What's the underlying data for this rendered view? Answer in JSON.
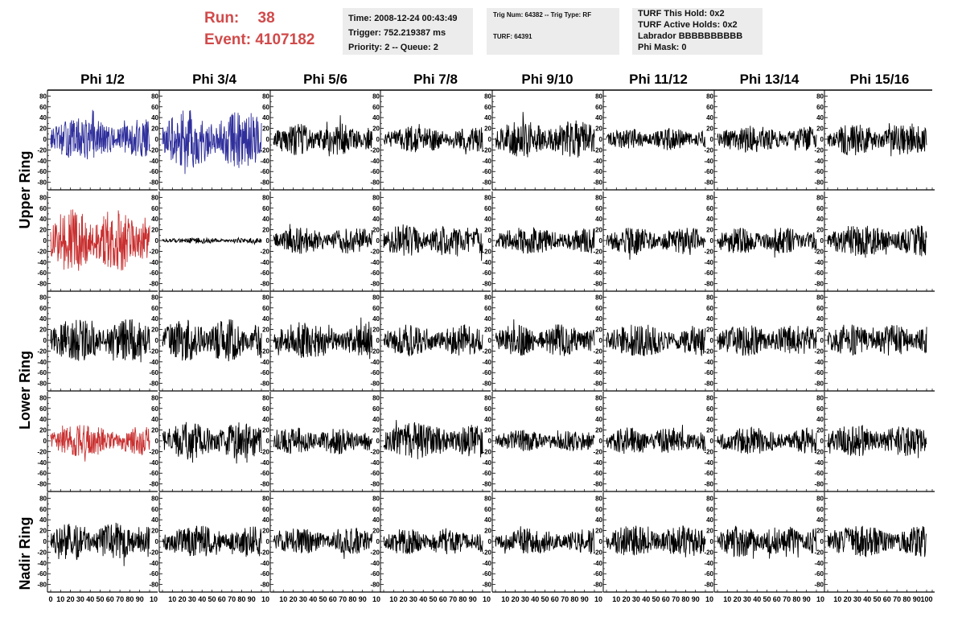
{
  "header": {
    "run_label": "Run:",
    "run_value": "38",
    "event_label": "Event:",
    "event_value": "4107182"
  },
  "time_box": {
    "time": "Time: 2008-12-24 00:43:49",
    "trigger": "Trigger: 752.219387 ms",
    "priority": "Priority: 2 -- Queue: 2"
  },
  "trig_box": {
    "trig_line": "Trig Num: 64382 -- Trig Type: RF",
    "turf_line": "TURF: 64391"
  },
  "turf_box": {
    "this_hold": "TURF This Hold: 0x2",
    "active_holds": "TURF Active Holds: 0x2",
    "labrador": "Labrador BBBBBBBBBB",
    "phi_mask": "Phi Mask: 0"
  },
  "columns": [
    "Phi 1/2",
    "Phi 3/4",
    "Phi 5/6",
    "Phi 7/8",
    "Phi 9/10",
    "Phi 11/12",
    "Phi 13/14",
    "Phi 15/16"
  ],
  "ring_labels": [
    "Upper Ring",
    "Lower Ring",
    "Nadir Ring"
  ],
  "y_ticks": [
    "80",
    "60",
    "40",
    "20",
    "0",
    "-20",
    "-40",
    "-60",
    "-80"
  ],
  "x_tick_labels": [
    "0",
    "10",
    "20",
    "30",
    "40",
    "50",
    "60",
    "70",
    "80",
    "90"
  ],
  "x_last_tick": "100",
  "colors": {
    "highlight_blue": "#2f2f9c",
    "highlight_red": "#c93030",
    "trace_default": "#000000",
    "run_text": "#d14a4a",
    "box_bg": "#ececec"
  },
  "chart_data": {
    "type": "line",
    "xlim": [
      0,
      100
    ],
    "ylim": [
      -85,
      85
    ],
    "grid": false,
    "panels": [
      {
        "row": 0,
        "col": 0,
        "color": "blue",
        "amplitude": 40
      },
      {
        "row": 0,
        "col": 1,
        "color": "blue",
        "amplitude": 55
      },
      {
        "row": 0,
        "col": 2,
        "color": "black",
        "amplitude": 30
      },
      {
        "row": 0,
        "col": 3,
        "color": "black",
        "amplitude": 25
      },
      {
        "row": 0,
        "col": 4,
        "color": "black",
        "amplitude": 35
      },
      {
        "row": 0,
        "col": 5,
        "color": "black",
        "amplitude": 20
      },
      {
        "row": 0,
        "col": 6,
        "color": "black",
        "amplitude": 25
      },
      {
        "row": 0,
        "col": 7,
        "color": "black",
        "amplitude": 30
      },
      {
        "row": 1,
        "col": 0,
        "color": "red",
        "amplitude": 60
      },
      {
        "row": 1,
        "col": 1,
        "color": "black",
        "amplitude": 5
      },
      {
        "row": 1,
        "col": 2,
        "color": "black",
        "amplitude": 25
      },
      {
        "row": 1,
        "col": 3,
        "color": "black",
        "amplitude": 30
      },
      {
        "row": 1,
        "col": 4,
        "color": "black",
        "amplitude": 25
      },
      {
        "row": 1,
        "col": 5,
        "color": "black",
        "amplitude": 25
      },
      {
        "row": 1,
        "col": 6,
        "color": "black",
        "amplitude": 25
      },
      {
        "row": 1,
        "col": 7,
        "color": "black",
        "amplitude": 30
      },
      {
        "row": 2,
        "col": 0,
        "color": "black",
        "amplitude": 40
      },
      {
        "row": 2,
        "col": 1,
        "color": "black",
        "amplitude": 40
      },
      {
        "row": 2,
        "col": 2,
        "color": "black",
        "amplitude": 35
      },
      {
        "row": 2,
        "col": 3,
        "color": "black",
        "amplitude": 30
      },
      {
        "row": 2,
        "col": 4,
        "color": "black",
        "amplitude": 30
      },
      {
        "row": 2,
        "col": 5,
        "color": "black",
        "amplitude": 30
      },
      {
        "row": 2,
        "col": 6,
        "color": "black",
        "amplitude": 30
      },
      {
        "row": 2,
        "col": 7,
        "color": "black",
        "amplitude": 30
      },
      {
        "row": 3,
        "col": 0,
        "color": "red",
        "amplitude": 30
      },
      {
        "row": 3,
        "col": 1,
        "color": "black",
        "amplitude": 35
      },
      {
        "row": 3,
        "col": 2,
        "color": "black",
        "amplitude": 25
      },
      {
        "row": 3,
        "col": 3,
        "color": "black",
        "amplitude": 35
      },
      {
        "row": 3,
        "col": 4,
        "color": "black",
        "amplitude": 20
      },
      {
        "row": 3,
        "col": 5,
        "color": "black",
        "amplitude": 25
      },
      {
        "row": 3,
        "col": 6,
        "color": "black",
        "amplitude": 25
      },
      {
        "row": 3,
        "col": 7,
        "color": "black",
        "amplitude": 30
      },
      {
        "row": 4,
        "col": 0,
        "color": "black",
        "amplitude": 35
      },
      {
        "row": 4,
        "col": 1,
        "color": "black",
        "amplitude": 30
      },
      {
        "row": 4,
        "col": 2,
        "color": "black",
        "amplitude": 25
      },
      {
        "row": 4,
        "col": 3,
        "color": "black",
        "amplitude": 25
      },
      {
        "row": 4,
        "col": 4,
        "color": "black",
        "amplitude": 25
      },
      {
        "row": 4,
        "col": 5,
        "color": "black",
        "amplitude": 30
      },
      {
        "row": 4,
        "col": 6,
        "color": "black",
        "amplitude": 30
      },
      {
        "row": 4,
        "col": 7,
        "color": "black",
        "amplitude": 30
      }
    ]
  }
}
